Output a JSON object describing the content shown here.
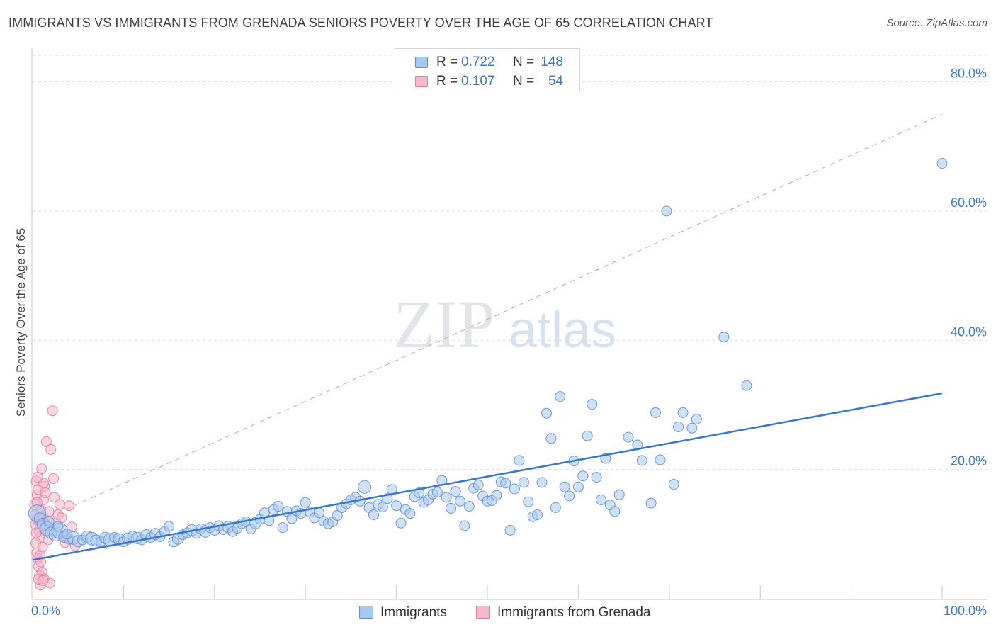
{
  "title": "IMMIGRANTS VS IMMIGRANTS FROM GRENADA SENIORS POVERTY OVER THE AGE OF 65 CORRELATION CHART",
  "source": "Source: ZipAtlas.com",
  "watermark": {
    "part1": "ZIP",
    "part2": "atlas"
  },
  "colors": {
    "blue_fill": "#a9c8ee",
    "blue_stroke": "#5b8fd6",
    "blue_line": "#3776cf",
    "pink_fill": "#f6b8cc",
    "pink_stroke": "#e47c9e",
    "pink_line": "#e58fa8",
    "grid": "#dddddd",
    "tick_text": "#3c77c9"
  },
  "stats_box": {
    "rows": [
      {
        "r_label": "R =",
        "r_value": "0.722",
        "n_label": "N =",
        "n_value": "148"
      },
      {
        "r_label": "R =",
        "r_value": "0.107",
        "n_label": "N =",
        "n_value": "54"
      }
    ]
  },
  "legend": {
    "items": [
      {
        "label": "Immigrants"
      },
      {
        "label": "Immigrants from Grenada"
      }
    ]
  },
  "chart_data": {
    "type": "scatter",
    "title": "IMMIGRANTS VS IMMIGRANTS FROM GRENADA SENIORS POVERTY OVER THE AGE OF 65 CORRELATION CHART",
    "xlabel": "",
    "ylabel": "Seniors Poverty Over the Age of 65",
    "xlim": [
      0,
      100
    ],
    "ylim": [
      0,
      85
    ],
    "x_tick_labels": [
      {
        "value": 0,
        "label": "0.0%"
      },
      {
        "value": 100,
        "label": "100.0%"
      }
    ],
    "y_tick_labels": [
      {
        "value": 20,
        "label": "20.0%"
      },
      {
        "value": 40,
        "label": "40.0%"
      },
      {
        "value": 60,
        "label": "60.0%"
      },
      {
        "value": 80,
        "label": "80.0%"
      }
    ],
    "grid": true,
    "legend_position": "bottom",
    "series": [
      {
        "name": "Immigrants",
        "color": "#a9c8ee",
        "trendline": {
          "x": [
            0,
            100
          ],
          "y": [
            6.0,
            31.8
          ],
          "style": "solid"
        },
        "points": [
          [
            0.5,
            13.2,
            22
          ],
          [
            0.8,
            12.4,
            14
          ],
          [
            1.2,
            11.5,
            16
          ],
          [
            1.6,
            10.8,
            18
          ],
          [
            2.0,
            10.2,
            14
          ],
          [
            2.5,
            9.9,
            16
          ],
          [
            3.0,
            10.5,
            20
          ],
          [
            3.5,
            9.6,
            14
          ],
          [
            4.0,
            9.2,
            12
          ],
          [
            4.5,
            9.4,
            16
          ],
          [
            5.0,
            8.9,
            14
          ],
          [
            5.5,
            9.1,
            12
          ],
          [
            6.0,
            9.6,
            14
          ],
          [
            6.5,
            9.3,
            16
          ],
          [
            7.0,
            9.0,
            14
          ],
          [
            7.5,
            8.8,
            12
          ],
          [
            8.0,
            9.4,
            14
          ],
          [
            8.5,
            9.1,
            16
          ],
          [
            9.0,
            9.5,
            12
          ],
          [
            9.5,
            9.2,
            14
          ],
          [
            10.0,
            8.8,
            12
          ],
          [
            10.5,
            9.3,
            14
          ],
          [
            11.0,
            9.7,
            12
          ],
          [
            11.5,
            9.4,
            14
          ],
          [
            12.0,
            9.1,
            12
          ],
          [
            12.5,
            9.8,
            14
          ],
          [
            13.0,
            9.5,
            12
          ],
          [
            13.5,
            10.0,
            14
          ],
          [
            14.0,
            9.6,
            12
          ],
          [
            14.5,
            10.4,
            12
          ],
          [
            15.0,
            11.2,
            12
          ],
          [
            15.5,
            8.8,
            12
          ],
          [
            16.0,
            9.3,
            14
          ],
          [
            16.5,
            9.9,
            12
          ],
          [
            17.0,
            10.2,
            12
          ],
          [
            17.5,
            10.6,
            14
          ],
          [
            18.0,
            10.1,
            12
          ],
          [
            18.5,
            10.8,
            12
          ],
          [
            19.0,
            10.4,
            14
          ],
          [
            19.5,
            11.0,
            12
          ],
          [
            20.0,
            10.6,
            12
          ],
          [
            20.5,
            11.3,
            12
          ],
          [
            21.0,
            10.7,
            12
          ],
          [
            21.5,
            11.1,
            14
          ],
          [
            22.0,
            10.4,
            12
          ],
          [
            22.5,
            10.9,
            12
          ],
          [
            23.0,
            11.6,
            12
          ],
          [
            23.5,
            11.9,
            12
          ],
          [
            24.0,
            10.8,
            12
          ],
          [
            24.5,
            11.7,
            14
          ],
          [
            25.0,
            12.3,
            12
          ],
          [
            25.5,
            13.3,
            12
          ],
          [
            26.0,
            12.1,
            12
          ],
          [
            26.5,
            13.8,
            12
          ],
          [
            27.0,
            14.3,
            12
          ],
          [
            27.5,
            11.0,
            12
          ],
          [
            28.0,
            13.5,
            12
          ],
          [
            28.5,
            12.4,
            12
          ],
          [
            29.0,
            13.6,
            12
          ],
          [
            29.5,
            13.2,
            12
          ],
          [
            30.0,
            14.9,
            12
          ],
          [
            30.5,
            13.4,
            12
          ],
          [
            31.0,
            12.5,
            12
          ],
          [
            31.5,
            13.3,
            12
          ],
          [
            32.0,
            12.0,
            12
          ],
          [
            32.5,
            11.6,
            12
          ],
          [
            33.0,
            11.9,
            12
          ],
          [
            33.5,
            12.9,
            12
          ],
          [
            34.0,
            14.1,
            12
          ],
          [
            34.5,
            14.7,
            12
          ],
          [
            35.0,
            15.3,
            12
          ],
          [
            35.5,
            15.7,
            12
          ],
          [
            36.0,
            15.1,
            12
          ],
          [
            36.5,
            17.3,
            16
          ],
          [
            37.0,
            14.1,
            12
          ],
          [
            37.5,
            13.0,
            12
          ],
          [
            38.0,
            14.6,
            12
          ],
          [
            38.5,
            14.2,
            12
          ],
          [
            39.0,
            15.5,
            12
          ],
          [
            39.5,
            16.9,
            12
          ],
          [
            40.0,
            14.4,
            12
          ],
          [
            40.5,
            11.7,
            12
          ],
          [
            41.0,
            13.8,
            12
          ],
          [
            41.5,
            13.2,
            12
          ],
          [
            42.0,
            15.8,
            12
          ],
          [
            42.5,
            16.4,
            12
          ],
          [
            43.0,
            14.9,
            12
          ],
          [
            43.5,
            15.3,
            12
          ],
          [
            44.0,
            16.2,
            12
          ],
          [
            44.5,
            16.5,
            12
          ],
          [
            45.0,
            18.3,
            12
          ],
          [
            45.5,
            15.7,
            12
          ],
          [
            46.0,
            14.0,
            12
          ],
          [
            46.5,
            16.6,
            12
          ],
          [
            47.0,
            15.1,
            12
          ],
          [
            47.5,
            11.3,
            12
          ],
          [
            48.0,
            14.3,
            12
          ],
          [
            48.5,
            17.1,
            12
          ],
          [
            49.0,
            17.6,
            12
          ],
          [
            49.5,
            15.9,
            12
          ],
          [
            50.0,
            15.1,
            12
          ],
          [
            50.5,
            15.2,
            12
          ],
          [
            51.0,
            16.0,
            12
          ],
          [
            51.5,
            18.1,
            12
          ],
          [
            52.0,
            17.9,
            12
          ],
          [
            52.5,
            10.6,
            12
          ],
          [
            53.0,
            17.0,
            12
          ],
          [
            53.5,
            21.4,
            12
          ],
          [
            54.0,
            18.0,
            12
          ],
          [
            54.5,
            15.0,
            12
          ],
          [
            55.0,
            12.7,
            12
          ],
          [
            55.5,
            13.0,
            12
          ],
          [
            56.0,
            18.0,
            12
          ],
          [
            56.5,
            28.7,
            12
          ],
          [
            57.0,
            24.8,
            12
          ],
          [
            57.5,
            14.1,
            12
          ],
          [
            58.0,
            31.3,
            12
          ],
          [
            58.5,
            17.3,
            12
          ],
          [
            59.0,
            15.9,
            12
          ],
          [
            59.5,
            21.3,
            12
          ],
          [
            60.0,
            17.3,
            12
          ],
          [
            60.5,
            19.0,
            12
          ],
          [
            61.0,
            25.2,
            12
          ],
          [
            61.5,
            30.1,
            12
          ],
          [
            62.0,
            18.8,
            12
          ],
          [
            62.5,
            15.3,
            12
          ],
          [
            63.0,
            21.7,
            12
          ],
          [
            63.5,
            14.5,
            12
          ],
          [
            64.0,
            13.5,
            12
          ],
          [
            64.5,
            16.1,
            12
          ],
          [
            65.5,
            25.0,
            12
          ],
          [
            66.5,
            23.8,
            12
          ],
          [
            67.0,
            21.4,
            12
          ],
          [
            68.0,
            14.8,
            12
          ],
          [
            68.5,
            28.8,
            12
          ],
          [
            69.0,
            21.5,
            12
          ],
          [
            70.5,
            17.7,
            12
          ],
          [
            71.0,
            26.6,
            12
          ],
          [
            71.5,
            28.8,
            12
          ],
          [
            72.5,
            26.4,
            12
          ],
          [
            73.0,
            27.8,
            12
          ],
          [
            69.7,
            60.0,
            12
          ],
          [
            76.0,
            40.5,
            12
          ],
          [
            78.5,
            33.0,
            12
          ],
          [
            100.0,
            67.4,
            12
          ],
          [
            1.8,
            12.0,
            12
          ],
          [
            2.8,
            11.2,
            12
          ],
          [
            3.8,
            10.0,
            12
          ]
        ]
      },
      {
        "name": "Immigrants from Grenada",
        "color": "#f6b8cc",
        "trendline": {
          "x": [
            0,
            100
          ],
          "y": [
            11.5,
            75.0
          ],
          "style": "dashed"
        },
        "points": [
          [
            0.3,
            14.5,
            14
          ],
          [
            0.4,
            18.2,
            12
          ],
          [
            0.5,
            16.1,
            12
          ],
          [
            0.6,
            12.3,
            14
          ],
          [
            0.7,
            10.4,
            12
          ],
          [
            0.8,
            9.6,
            12
          ],
          [
            0.9,
            13.7,
            12
          ],
          [
            1.0,
            12.8,
            12
          ],
          [
            1.1,
            11.9,
            12
          ],
          [
            1.2,
            15.3,
            12
          ],
          [
            1.3,
            17.4,
            12
          ],
          [
            1.4,
            11.4,
            12
          ],
          [
            0.35,
            8.6,
            12
          ],
          [
            0.45,
            7.1,
            12
          ],
          [
            0.55,
            6.2,
            12
          ],
          [
            0.65,
            5.0,
            12
          ],
          [
            0.75,
            3.6,
            12
          ],
          [
            0.85,
            2.1,
            12
          ],
          [
            1.05,
            4.1,
            12
          ],
          [
            1.25,
            3.1,
            12
          ],
          [
            1.5,
            24.3,
            12
          ],
          [
            1.7,
            9.1,
            12
          ],
          [
            1.9,
            2.4,
            12
          ],
          [
            2.0,
            23.1,
            12
          ],
          [
            2.2,
            29.1,
            12
          ],
          [
            2.3,
            18.6,
            12
          ],
          [
            2.4,
            15.7,
            12
          ],
          [
            2.6,
            11.7,
            12
          ],
          [
            2.8,
            13.0,
            12
          ],
          [
            3.0,
            14.6,
            12
          ],
          [
            3.2,
            12.5,
            12
          ],
          [
            3.4,
            9.8,
            12
          ],
          [
            3.6,
            8.7,
            12
          ],
          [
            4.0,
            14.4,
            12
          ],
          [
            4.3,
            11.1,
            12
          ],
          [
            4.7,
            8.2,
            12
          ],
          [
            0.25,
            13.0,
            12
          ],
          [
            0.3,
            11.5,
            12
          ],
          [
            0.4,
            10.2,
            12
          ],
          [
            0.5,
            14.9,
            12
          ],
          [
            0.6,
            16.9,
            12
          ],
          [
            0.7,
            12.0,
            12
          ],
          [
            0.8,
            6.7,
            12
          ],
          [
            0.9,
            5.7,
            12
          ],
          [
            1.1,
            8.0,
            12
          ],
          [
            1.3,
            10.9,
            12
          ],
          [
            1.6,
            12.1,
            12
          ],
          [
            1.8,
            13.5,
            12
          ],
          [
            1.0,
            20.1,
            12
          ],
          [
            1.2,
            17.9,
            12
          ],
          [
            1.4,
            16.4,
            12
          ],
          [
            0.55,
            18.8,
            12
          ],
          [
            0.65,
            3.0,
            12
          ],
          [
            1.15,
            2.8,
            12
          ]
        ]
      }
    ]
  }
}
